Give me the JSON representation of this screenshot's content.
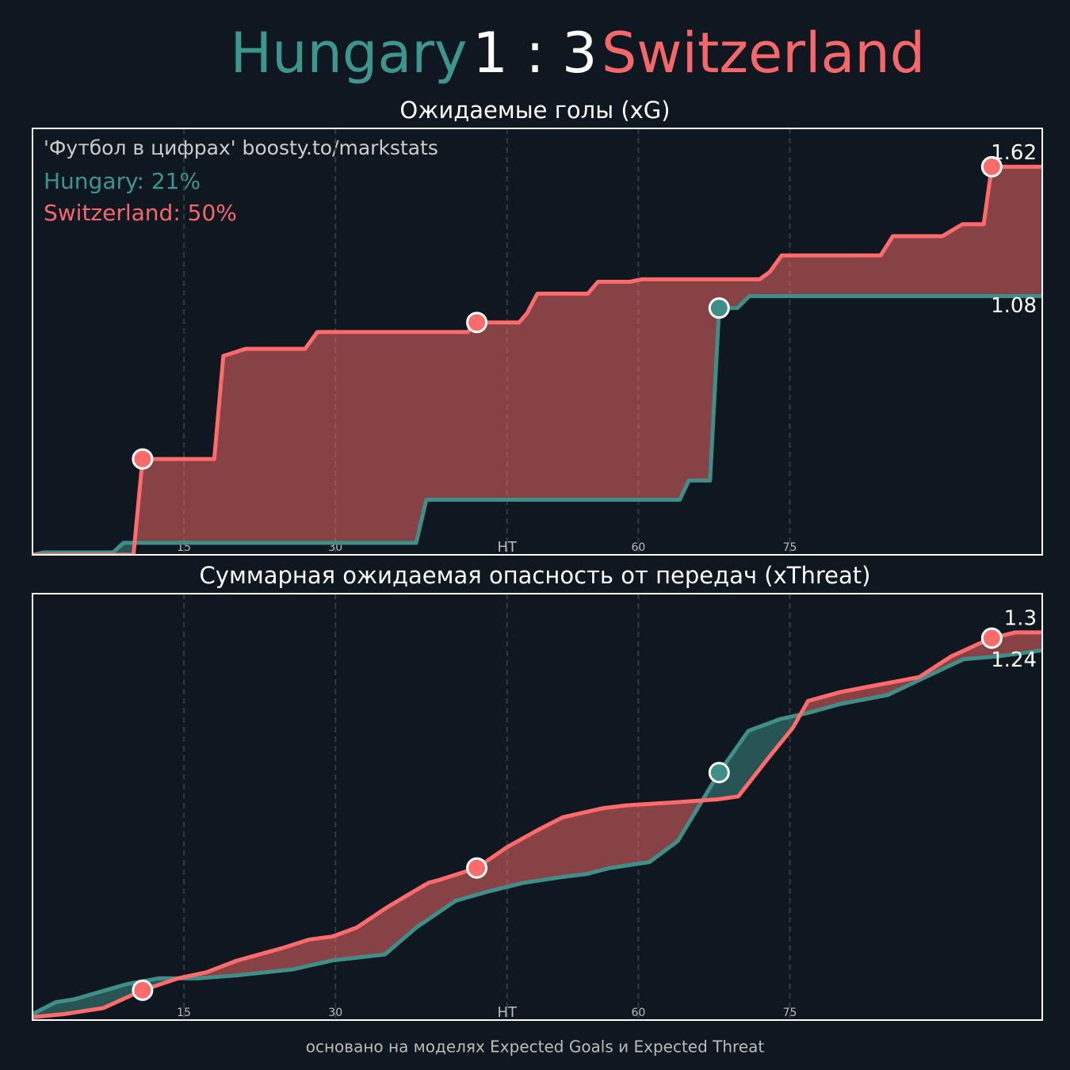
{
  "header": {
    "home": "Hungary",
    "score": "1 : 3",
    "away": "Switzerland"
  },
  "watermark": "'Футбол в цифрах' boosty.to/markstats",
  "probabilities": [
    "Hungary: 21%",
    "Switzerland: 50%"
  ],
  "footer": "основано на моделях Expected Goals и Expected Threat",
  "chart_data": [
    {
      "type": "line",
      "title": "Ожидаемые голы (xG)",
      "xlim": [
        0,
        100
      ],
      "xticks": [
        15,
        30,
        {
          "value": 47,
          "label": "HT"
        },
        60,
        75
      ],
      "ylim": [
        0,
        1.78
      ],
      "grid": true,
      "series": [
        {
          "name": "Hungary",
          "color": "#3f8f89",
          "x": [
            0,
            1.1,
            8,
            9,
            38,
            39,
            64.1,
            65,
            67.1,
            68,
            69.8,
            71,
            100
          ],
          "values": [
            0,
            0.01,
            0.01,
            0.05,
            0.05,
            0.23,
            0.23,
            0.31,
            0.31,
            1.03,
            1.03,
            1.08,
            1.08
          ],
          "goals": [
            68
          ]
        },
        {
          "name": "Switzerland",
          "color": "#ff6b6b",
          "x": [
            0,
            10,
            10.9,
            18,
            18.9,
            21.1,
            27,
            28.2,
            43.1,
            44,
            48.2,
            49,
            50,
            55,
            56,
            59.2,
            60.3,
            72,
            73,
            74.2,
            84,
            85.2,
            90.1,
            92.1,
            94.2,
            95,
            100
          ],
          "values": [
            0,
            0,
            0.4,
            0.4,
            0.83,
            0.86,
            0.86,
            0.93,
            0.93,
            0.97,
            0.97,
            1.01,
            1.09,
            1.09,
            1.14,
            1.14,
            1.15,
            1.15,
            1.18,
            1.25,
            1.25,
            1.33,
            1.33,
            1.38,
            1.38,
            1.62,
            1.62
          ],
          "goals": [
            10.9,
            44,
            95
          ]
        }
      ]
    },
    {
      "type": "line",
      "title": "Суммарная ожидаемая опасность от передач (xThreat)",
      "xlim": [
        0,
        100
      ],
      "xticks": [
        15,
        30,
        {
          "value": 47,
          "label": "HT"
        },
        60,
        75
      ],
      "ylim": [
        0,
        1.43
      ],
      "grid": true,
      "series": [
        {
          "name": "Hungary",
          "color": "#3f8f89",
          "x": [
            0,
            2.3,
            4.2,
            6.2,
            9.3,
            12.5,
            16.4,
            20.3,
            25.8,
            29.7,
            34.9,
            38,
            41.9,
            45,
            48.6,
            52.5,
            54.9,
            57.2,
            61.1,
            63.9,
            68,
            70.9,
            74.1,
            76.8,
            80,
            84.7,
            87.8,
            92.2,
            95.7,
            100
          ],
          "values": [
            0.02,
            0.06,
            0.07,
            0.09,
            0.12,
            0.14,
            0.14,
            0.15,
            0.17,
            0.2,
            0.22,
            0.31,
            0.4,
            0.43,
            0.46,
            0.48,
            0.49,
            0.51,
            0.53,
            0.6,
            0.83,
            0.97,
            1.01,
            1.03,
            1.06,
            1.09,
            1.14,
            1.21,
            1.22,
            1.24
          ],
          "goals": [
            68
          ]
        },
        {
          "name": "Switzerland",
          "color": "#ff6b6b",
          "x": [
            0,
            3.1,
            7,
            10.9,
            14.4,
            17.2,
            20.3,
            24.6,
            27.4,
            29.7,
            32.1,
            35.2,
            39.2,
            40.3,
            44,
            47,
            50.2,
            52.5,
            56.4,
            58.8,
            63.5,
            67.8,
            69.9,
            72.9,
            75.3,
            76.8,
            80,
            83.1,
            87.8,
            91,
            94.9,
            97.3,
            100
          ],
          "values": [
            0.01,
            0.02,
            0.04,
            0.1,
            0.14,
            0.16,
            0.2,
            0.24,
            0.27,
            0.28,
            0.31,
            0.38,
            0.46,
            0.47,
            0.51,
            0.58,
            0.64,
            0.68,
            0.71,
            0.72,
            0.73,
            0.74,
            0.75,
            0.88,
            0.98,
            1.07,
            1.1,
            1.12,
            1.15,
            1.22,
            1.28,
            1.3,
            1.3
          ],
          "goals": [
            10.9,
            44,
            95
          ]
        }
      ]
    }
  ]
}
